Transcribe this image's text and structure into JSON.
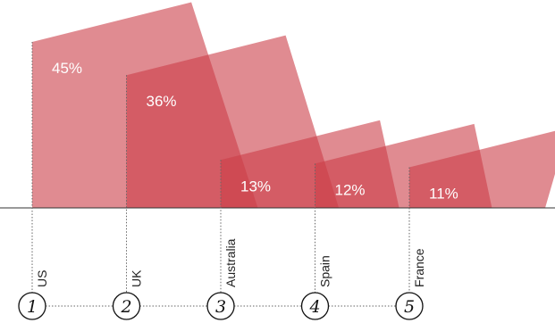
{
  "chart_data": {
    "type": "bar",
    "categories": [
      "US",
      "UK",
      "Australia",
      "Spain",
      "France"
    ],
    "values": [
      45,
      36,
      13,
      12,
      11
    ],
    "value_labels": [
      "45%",
      "36%",
      "13%",
      "12%",
      "11%"
    ],
    "ranks": [
      "1",
      "2",
      "3",
      "4",
      "5"
    ],
    "title": "",
    "xlabel": "",
    "ylabel": "",
    "ylim": [
      0,
      45
    ],
    "grid": false,
    "legend": "none",
    "colors": {
      "bar": "#cc3d47",
      "baseline": "#333333",
      "guide": "#666666"
    }
  }
}
